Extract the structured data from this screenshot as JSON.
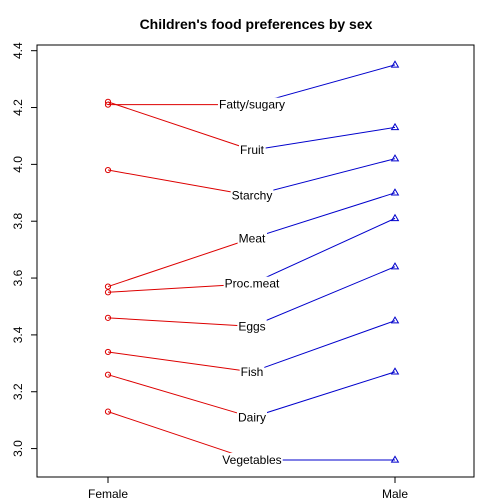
{
  "chart_data": {
    "type": "line",
    "title": "Children's food preferences by sex",
    "categories": [
      "Female",
      "Male"
    ],
    "xlabel": "",
    "ylabel": "",
    "ylim": [
      2.9,
      4.42
    ],
    "yticks": [
      "3.0",
      "3.2",
      "3.4",
      "3.6",
      "3.8",
      "4.0",
      "4.2",
      "4.4"
    ],
    "grid": false,
    "series": [
      {
        "name": "Fatty/sugary",
        "values": [
          4.21,
          4.35
        ]
      },
      {
        "name": "Fruit",
        "values": [
          4.22,
          4.13
        ]
      },
      {
        "name": "Starchy",
        "values": [
          3.98,
          4.02
        ]
      },
      {
        "name": "Meat",
        "values": [
          3.57,
          3.9
        ]
      },
      {
        "name": "Proc.meat",
        "values": [
          3.55,
          3.81
        ]
      },
      {
        "name": "Eggs",
        "values": [
          3.46,
          3.64
        ]
      },
      {
        "name": "Fish",
        "values": [
          3.34,
          3.45
        ]
      },
      {
        "name": "Dairy",
        "values": [
          3.26,
          3.27
        ]
      },
      {
        "name": "Vegetables",
        "values": [
          3.13,
          2.96
        ]
      }
    ],
    "label_values": [
      4.21,
      4.05,
      3.89,
      3.74,
      3.58,
      3.43,
      3.27,
      3.11,
      2.96
    ],
    "colors": {
      "female": "#dd0000",
      "male": "#0000cc",
      "axis": "#000000"
    },
    "markers": {
      "female": "circle",
      "male": "triangle"
    }
  }
}
